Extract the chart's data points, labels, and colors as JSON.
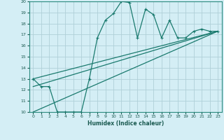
{
  "xlabel": "Humidex (Indice chaleur)",
  "bg_color": "#d4eef5",
  "grid_color": "#b0d0d8",
  "line_color": "#1a7a6e",
  "xlim": [
    -0.5,
    23.5
  ],
  "ylim": [
    10,
    20
  ],
  "xticks": [
    0,
    1,
    2,
    3,
    4,
    5,
    6,
    7,
    8,
    9,
    10,
    11,
    12,
    13,
    14,
    15,
    16,
    17,
    18,
    19,
    20,
    21,
    22,
    23
  ],
  "yticks": [
    10,
    11,
    12,
    13,
    14,
    15,
    16,
    17,
    18,
    19,
    20
  ],
  "series1_x": [
    0,
    1,
    2,
    3,
    4,
    5,
    6,
    7,
    8,
    9,
    10,
    11,
    12,
    13,
    14,
    15,
    16,
    17,
    18,
    19,
    20,
    21,
    22,
    23
  ],
  "series1_y": [
    13.0,
    12.3,
    12.3,
    10.0,
    10.0,
    10.0,
    10.0,
    13.0,
    16.7,
    18.3,
    18.9,
    20.0,
    19.9,
    16.7,
    19.3,
    18.8,
    16.7,
    18.3,
    16.7,
    16.7,
    17.3,
    17.5,
    17.3,
    17.3
  ],
  "series2_x": [
    0,
    23
  ],
  "series2_y": [
    13.0,
    17.3
  ],
  "series3_x": [
    0,
    23
  ],
  "series3_y": [
    12.3,
    17.3
  ],
  "series4_x": [
    0,
    23
  ],
  "series4_y": [
    10.0,
    17.3
  ]
}
